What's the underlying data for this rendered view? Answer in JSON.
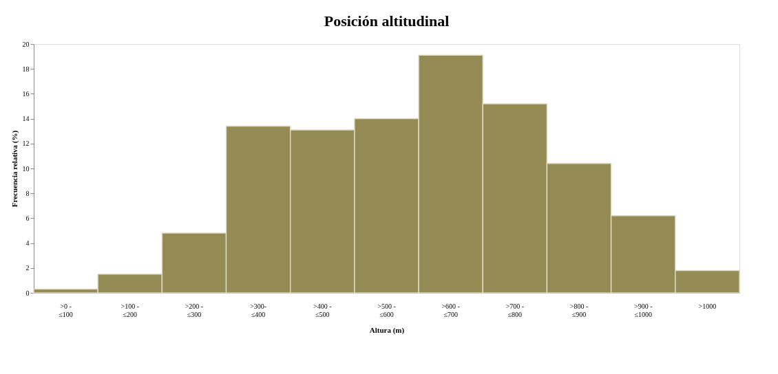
{
  "chart_data": {
    "type": "bar",
    "title": "Posición altitudinal",
    "xlabel": "Altura (m)",
    "ylabel": "Frecuencia relativa (%)",
    "categories": [
      ">0 -\n≤100",
      ">100 -\n≤200",
      ">200 -\n≤300",
      ">300-\n≤400",
      ">400 -\n≤500",
      ">500 -\n≤600",
      ">600 -\n≤700",
      ">700 -\n≤800",
      ">800 -\n≤900",
      ">900 -\n≤1000",
      ">1000"
    ],
    "values": [
      0.3,
      1.5,
      4.8,
      13.4,
      13.1,
      14.0,
      19.1,
      15.2,
      10.4,
      6.2,
      1.8
    ],
    "color": "#948a54",
    "ylim": [
      0,
      20
    ],
    "yticks": [
      0,
      2,
      4,
      6,
      8,
      10,
      12,
      14,
      16,
      18,
      20
    ],
    "grid": false
  }
}
